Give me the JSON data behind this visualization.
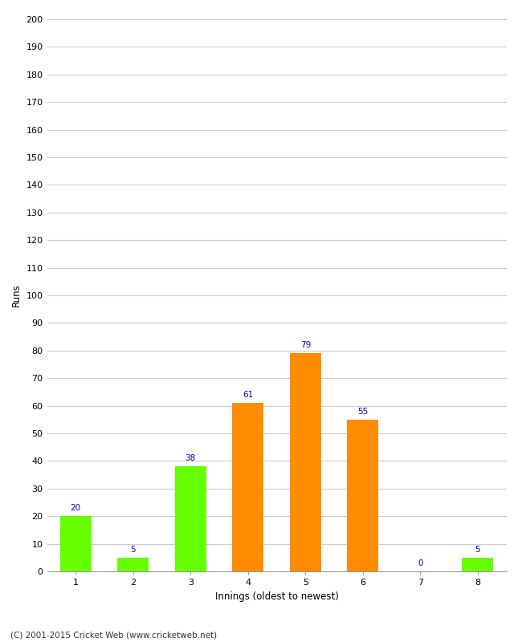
{
  "categories": [
    "1",
    "2",
    "3",
    "4",
    "5",
    "6",
    "7",
    "8"
  ],
  "values": [
    20,
    5,
    38,
    61,
    79,
    55,
    0,
    5
  ],
  "bar_colors": [
    "#66ff00",
    "#66ff00",
    "#66ff00",
    "#ff8c00",
    "#ff8c00",
    "#ff8c00",
    "#ff8c00",
    "#66ff00"
  ],
  "ylabel": "Runs",
  "xlabel": "Innings (oldest to newest)",
  "ylim": [
    0,
    200
  ],
  "ytick_step": 10,
  "annotation_color": "#0000cc",
  "annotation_fontsize": 7.5,
  "axis_fontsize": 8.5,
  "tick_fontsize": 8,
  "footer_text": "(C) 2001-2015 Cricket Web (www.cricketweb.net)",
  "footer_fontsize": 7.5,
  "background_color": "#ffffff",
  "grid_color": "#cccccc",
  "bar_width": 0.55
}
